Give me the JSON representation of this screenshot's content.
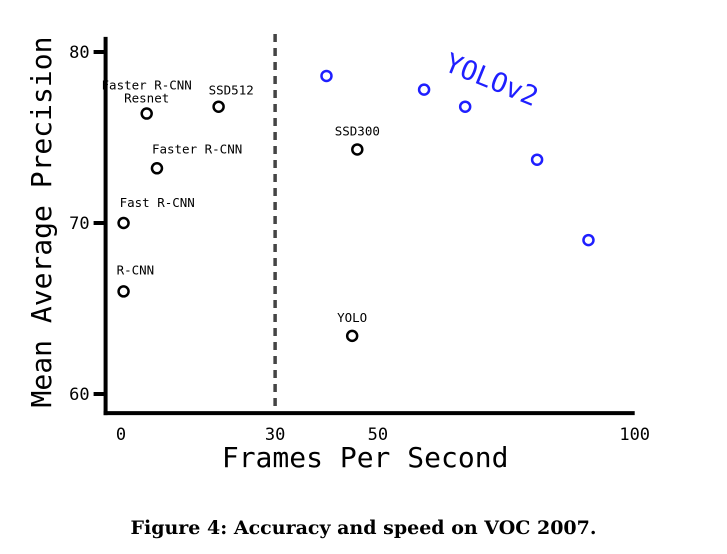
{
  "chart_data": {
    "type": "scatter",
    "xlabel": "Frames Per Second",
    "ylabel": "Mean Average Precision",
    "xlim": [
      -3,
      100
    ],
    "ylim": [
      59,
      81
    ],
    "xticks": [
      "0",
      "30",
      "50",
      "100"
    ],
    "yticks": [
      "60",
      "70",
      "80"
    ],
    "reference_line": {
      "x": 30,
      "style": "dashed"
    },
    "series": [
      {
        "color": "#000000",
        "points": [
          {
            "label": "R-CNN",
            "x": 0.5,
            "y": 66.0
          },
          {
            "label": "Fast R-CNN",
            "x": 0.5,
            "y": 70.0
          },
          {
            "label": "Faster R-CNN",
            "x": 7,
            "y": 73.2
          },
          {
            "label": "Faster R-CNN Resnet",
            "x": 5,
            "y": 76.4
          },
          {
            "label": "SSD512",
            "x": 19,
            "y": 76.8
          },
          {
            "label": "SSD300",
            "x": 46,
            "y": 74.3
          },
          {
            "label": "YOLO",
            "x": 45,
            "y": 63.4
          }
        ]
      },
      {
        "name": "YOLOv2",
        "color": "#1f1fff",
        "points": [
          {
            "x": 40,
            "y": 78.6
          },
          {
            "x": 59,
            "y": 77.8
          },
          {
            "x": 67,
            "y": 76.8
          },
          {
            "x": 81,
            "y": 73.7
          },
          {
            "x": 91,
            "y": 69.0
          }
        ]
      }
    ]
  },
  "caption": {
    "prefix": "Figure 4:",
    "text": "Accuracy and speed on VOC 2007."
  }
}
